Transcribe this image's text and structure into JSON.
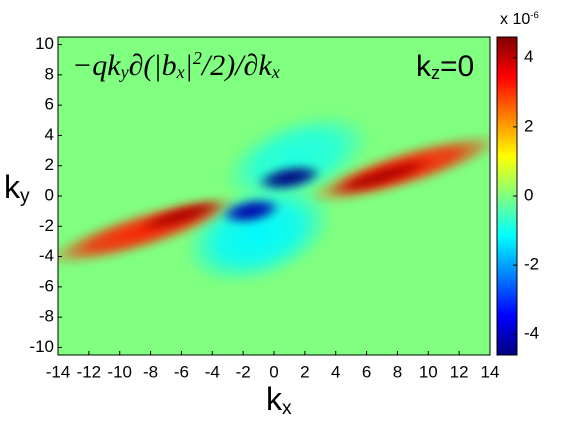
{
  "chart_data": {
    "type": "heatmap",
    "annotation": [
      "−qk",
      "y",
      "∂(|b",
      "x",
      "|",
      "2",
      "/2)/∂k",
      "x"
    ],
    "label": [
      "k",
      "z",
      "=0"
    ],
    "xlabel": [
      "k",
      "x"
    ],
    "ylabel": [
      "k",
      "y"
    ],
    "xlim": [
      -14,
      14
    ],
    "xticks": [
      -14,
      -12,
      -10,
      -8,
      -6,
      -4,
      -2,
      0,
      2,
      4,
      6,
      8,
      10,
      12,
      14
    ],
    "ylim": [
      -10.5,
      10.5
    ],
    "yticks": [
      -10,
      -8,
      -6,
      -4,
      -2,
      0,
      2,
      4,
      6,
      8,
      10
    ],
    "colormap": "jet",
    "background": 0,
    "clim": [
      -4.6,
      4.6
    ],
    "cticks": [
      -4,
      -2,
      0,
      2,
      4
    ],
    "cscale_label": [
      "x 10",
      "-6"
    ],
    "blobs": [
      {
        "x": -1,
        "y": -2.5,
        "value": -1.2,
        "rx": 5,
        "ry": 3,
        "angle": 20
      },
      {
        "x": 1.5,
        "y": 2.5,
        "value": -0.9,
        "rx": 5,
        "ry": 2.5,
        "angle": 20
      },
      {
        "x": 8.5,
        "y": 1.8,
        "value": 3.2,
        "rx": 6.5,
        "ry": 1.2,
        "angle": 17
      },
      {
        "x": 7,
        "y": 1.3,
        "value": 4.2,
        "rx": 3.5,
        "ry": 0.6,
        "angle": 17
      },
      {
        "x": -8.5,
        "y": -2.3,
        "value": 3.2,
        "rx": 6.5,
        "ry": 1.2,
        "angle": 17
      },
      {
        "x": -6,
        "y": -1.3,
        "value": 4.2,
        "rx": 3,
        "ry": 0.6,
        "angle": 17
      },
      {
        "x": 1,
        "y": 1.2,
        "value": -4.6,
        "rx": 2.2,
        "ry": 0.8,
        "angle": 10
      },
      {
        "x": -1.5,
        "y": -1,
        "value": -4.2,
        "rx": 2,
        "ry": 0.8,
        "angle": 10
      }
    ]
  }
}
